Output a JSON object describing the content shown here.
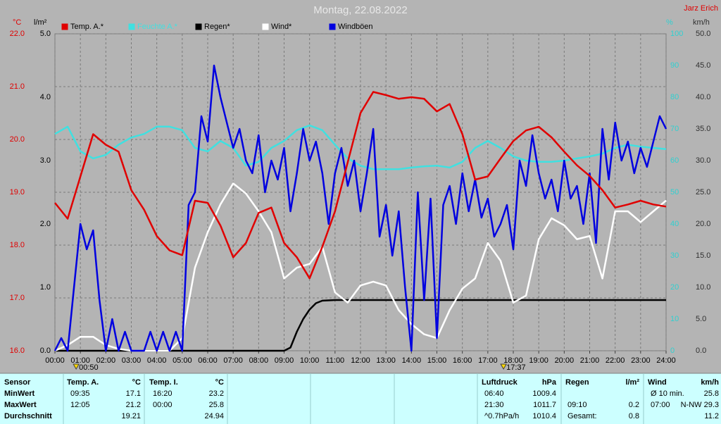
{
  "chart_data": {
    "type": "line",
    "title": "Montag, 22.08.2022",
    "credit": "Jarz Erich",
    "grid": true,
    "xlim": [
      0,
      24
    ],
    "xticks": [
      {
        "value": 0,
        "label": "00:00"
      },
      {
        "value": 1,
        "label": "01:00"
      },
      {
        "value": 2,
        "label": "02:00"
      },
      {
        "value": 3,
        "label": "03:00"
      },
      {
        "value": 4,
        "label": "04:00"
      },
      {
        "value": 5,
        "label": "05:00"
      },
      {
        "value": 6,
        "label": "06:00"
      },
      {
        "value": 7,
        "label": "07:00"
      },
      {
        "value": 8,
        "label": "08:00"
      },
      {
        "value": 9,
        "label": "09:00"
      },
      {
        "value": 10,
        "label": "10:00"
      },
      {
        "value": 11,
        "label": "11:00"
      },
      {
        "value": 12,
        "label": "12:00"
      },
      {
        "value": 13,
        "label": "13:00"
      },
      {
        "value": 14,
        "label": "14:00"
      },
      {
        "value": 15,
        "label": "15:00"
      },
      {
        "value": 16,
        "label": "16:00"
      },
      {
        "value": 17,
        "label": "17:00"
      },
      {
        "value": 18,
        "label": "18:00"
      },
      {
        "value": 19,
        "label": "19:00"
      },
      {
        "value": 20,
        "label": "20:00"
      },
      {
        "value": 21,
        "label": "21:00"
      },
      {
        "value": 22,
        "label": "22:00"
      },
      {
        "value": 23,
        "label": "23:00"
      },
      {
        "value": 24,
        "label": "24:00"
      }
    ],
    "annotations": [
      "00:50",
      "17:37"
    ],
    "axes": [
      {
        "unit": "°C",
        "color": "#e00000",
        "lim": [
          16,
          22
        ],
        "ticks": [
          {
            "value": 16,
            "label": "16.0"
          },
          {
            "value": 17,
            "label": "17.0"
          },
          {
            "value": 18,
            "label": "18.0"
          },
          {
            "value": 19,
            "label": "19.0"
          },
          {
            "value": 20,
            "label": "20.0"
          },
          {
            "value": 21,
            "label": "21.0"
          },
          {
            "value": 22,
            "label": "22.0"
          }
        ]
      },
      {
        "unit": "l/m²",
        "color": "#000000",
        "lim": [
          0,
          5
        ],
        "ticks": [
          {
            "value": 0,
            "label": "0.0"
          },
          {
            "value": 1,
            "label": "1.0"
          },
          {
            "value": 2,
            "label": "2.0"
          },
          {
            "value": 3,
            "label": "3.0"
          },
          {
            "value": 4,
            "label": "4.0"
          },
          {
            "value": 5,
            "label": "5.0"
          }
        ]
      },
      {
        "unit": "%",
        "color": "#30d0d0",
        "lim": [
          0,
          100
        ],
        "ticks": [
          0,
          10,
          20,
          30,
          40,
          50,
          60,
          70,
          80,
          90,
          100
        ]
      },
      {
        "unit": "km/h",
        "color": "#303030",
        "lim": [
          0,
          50
        ],
        "ticks": [
          {
            "value": 0,
            "label": "0.0"
          },
          {
            "value": 5,
            "label": "5.0"
          },
          {
            "value": 10,
            "label": "10.0"
          },
          {
            "value": 15,
            "label": "15.0"
          },
          {
            "value": 20,
            "label": "20.0"
          },
          {
            "value": 25,
            "label": "25.0"
          },
          {
            "value": 30,
            "label": "30.0"
          },
          {
            "value": 35,
            "label": "35.0"
          },
          {
            "value": 40,
            "label": "40.0"
          },
          {
            "value": 45,
            "label": "45.0"
          },
          {
            "value": 50,
            "label": "50.0"
          }
        ]
      }
    ],
    "series": [
      {
        "name": "Temp. A.*",
        "color": "#e00000",
        "axis": 0,
        "x": [
          0,
          0.5,
          1,
          1.5,
          2,
          2.5,
          3,
          3.5,
          4,
          4.5,
          5,
          5.5,
          6,
          6.5,
          7,
          7.5,
          8,
          8.5,
          9,
          9.5,
          10,
          10.5,
          11,
          11.5,
          12,
          12.5,
          13,
          13.5,
          14,
          14.5,
          15,
          15.5,
          16,
          16.5,
          17,
          17.5,
          18,
          18.5,
          19,
          19.5,
          20,
          20.5,
          21,
          21.5,
          22,
          22.5,
          23,
          23.5,
          24
        ],
        "values": [
          18.8,
          18.5,
          19.3,
          20.1,
          19.9,
          19.77,
          19.04,
          18.67,
          18.17,
          17.9,
          17.81,
          18.84,
          18.8,
          18.37,
          17.77,
          18.04,
          18.61,
          18.71,
          18.04,
          17.77,
          17.37,
          17.97,
          18.64,
          19.57,
          20.5,
          20.9,
          20.84,
          20.77,
          20.8,
          20.77,
          20.53,
          20.67,
          20.1,
          19.24,
          19.3,
          19.64,
          19.97,
          20.17,
          20.24,
          20.04,
          19.77,
          19.51,
          19.31,
          19.04,
          18.71,
          18.77,
          18.84,
          18.77,
          18.73
        ]
      },
      {
        "name": "Feuchte A.*",
        "color": "#40e0e0",
        "axis": 2,
        "x": [
          0,
          0.5,
          1,
          1.5,
          2,
          2.5,
          3,
          3.5,
          4,
          4.5,
          5,
          5.5,
          6,
          6.5,
          7,
          7.5,
          8,
          8.5,
          9,
          9.5,
          10,
          10.5,
          11,
          11.5,
          12,
          12.5,
          13,
          13.5,
          14,
          14.5,
          15,
          15.5,
          16,
          16.5,
          17,
          17.5,
          18,
          18.5,
          19,
          19.5,
          20,
          20.5,
          21,
          21.5,
          22,
          22.5,
          23,
          23.5,
          24
        ],
        "values": [
          68.4,
          70.7,
          62.9,
          60.7,
          61.8,
          65,
          67.3,
          68.4,
          70.7,
          70.7,
          69.6,
          64,
          62.9,
          66.2,
          64,
          58.4,
          59.6,
          64,
          66.2,
          69.6,
          71.1,
          69.6,
          65,
          60.7,
          58.4,
          57.3,
          57.3,
          57.3,
          57.8,
          58.2,
          58.4,
          57.8,
          59.6,
          64,
          66.2,
          64,
          61.3,
          60,
          59.6,
          59.6,
          60,
          60.7,
          61.3,
          62.2,
          64,
          65,
          64.4,
          64,
          63.6
        ]
      },
      {
        "name": "Regen*",
        "color": "#000000",
        "axis": 1,
        "x": [
          0,
          9,
          9.25,
          9.5,
          9.75,
          10,
          10.25,
          10.5,
          11,
          24
        ],
        "values": [
          0,
          0,
          0.05,
          0.3,
          0.5,
          0.65,
          0.75,
          0.79,
          0.8,
          0.8
        ]
      },
      {
        "name": "Wind*",
        "color": "#ffffff",
        "axis": 3,
        "x": [
          0,
          0.5,
          1,
          1.5,
          2,
          2.5,
          3,
          3.5,
          4,
          4.5,
          5,
          5.5,
          6,
          6.5,
          7,
          7.5,
          8,
          8.5,
          9,
          9.5,
          10,
          10.5,
          11,
          11.5,
          12,
          12.5,
          13,
          13.5,
          14,
          14.5,
          15,
          15.5,
          16,
          16.5,
          17,
          17.5,
          18,
          18.5,
          19,
          19.5,
          20,
          20.5,
          21,
          21.5,
          22,
          22.5,
          23,
          23.5,
          24
        ],
        "values": [
          0,
          0.9,
          2.2,
          2.2,
          0.9,
          0.3,
          0,
          0,
          0,
          0,
          2,
          13.1,
          18.7,
          23.1,
          26.4,
          24.8,
          22,
          18.7,
          11.4,
          13.1,
          13.7,
          16.4,
          9.2,
          7.6,
          10.3,
          10.9,
          10.3,
          6.4,
          4.2,
          2.6,
          2,
          6.4,
          9.8,
          11.4,
          17,
          14.2,
          7.6,
          8.7,
          17.6,
          20.9,
          19.8,
          17.6,
          18.1,
          11.4,
          22,
          22,
          20.3,
          22,
          23.7
        ]
      },
      {
        "name": "Windböen",
        "color": "#0000e0",
        "axis": 3,
        "x": [
          0,
          0.25,
          0.5,
          0.75,
          1,
          1.25,
          1.5,
          1.75,
          2,
          2.25,
          2.5,
          2.75,
          3,
          3.25,
          3.5,
          3.75,
          4,
          4.25,
          4.5,
          4.75,
          5,
          5.25,
          5.5,
          5.75,
          6,
          6.25,
          6.5,
          6.75,
          7,
          7.25,
          7.5,
          7.75,
          8,
          8.25,
          8.5,
          8.75,
          9,
          9.25,
          9.5,
          9.75,
          10,
          10.25,
          10.5,
          10.75,
          11,
          11.25,
          11.5,
          11.75,
          12,
          12.25,
          12.5,
          12.75,
          13,
          13.25,
          13.5,
          13.75,
          14,
          14.25,
          14.5,
          14.75,
          15,
          15.25,
          15.5,
          15.75,
          16,
          16.25,
          16.5,
          16.75,
          17,
          17.25,
          17.5,
          17.75,
          18,
          18.25,
          18.5,
          18.75,
          19,
          19.25,
          19.5,
          19.75,
          20,
          20.25,
          20.5,
          20.75,
          21,
          21.25,
          21.5,
          21.75,
          22,
          22.25,
          22.5,
          22.75,
          23,
          23.25,
          23.5,
          23.75,
          24
        ],
        "values": [
          0,
          2,
          0,
          10,
          20,
          16,
          19,
          8,
          0,
          5,
          0,
          3,
          0,
          0,
          0,
          3,
          0,
          3,
          0,
          3,
          0,
          23,
          25,
          37,
          33,
          45,
          40,
          36,
          32,
          35,
          30,
          28,
          34,
          25,
          30,
          27,
          32,
          22,
          28,
          35,
          30,
          33,
          28,
          20,
          28,
          32,
          26,
          30,
          22,
          28,
          35,
          18,
          23,
          15,
          22,
          10,
          0,
          25,
          8,
          24,
          2,
          23,
          26,
          20,
          28,
          22,
          27,
          21,
          24,
          18,
          20,
          23,
          16,
          30,
          26,
          34,
          28,
          24,
          27,
          22,
          30,
          24,
          26,
          20,
          28,
          17,
          35,
          27,
          36,
          30,
          33,
          28,
          32,
          29,
          33,
          37,
          35
        ]
      }
    ]
  },
  "table": {
    "row_labels": [
      "Sensor",
      "MinWert",
      "MaxWert",
      "Durchschnitt"
    ],
    "columns": [
      {
        "header": "Temp. A.",
        "unit": "°C",
        "min": {
          "time": "09:35",
          "value": "17.1"
        },
        "max": {
          "time": "12:05",
          "value": "21.2"
        },
        "avg": {
          "value": "19.21"
        }
      },
      {
        "header": "Temp. I.",
        "unit": "°C",
        "min": {
          "time": "16:20",
          "value": "23.2"
        },
        "max": {
          "time": "00:00",
          "value": "25.8"
        },
        "avg": {
          "value": "24.94"
        }
      },
      {
        "header": "Luftdruck",
        "unit": "hPa",
        "min": {
          "time": "06:40",
          "value": "1009.4"
        },
        "max": {
          "time": "21:30",
          "value": "1011.7"
        },
        "avg": {
          "time": "^0.7hPa/h",
          "value": "1010.4"
        }
      },
      {
        "header": "Regen",
        "unit": "l/m²",
        "max": {
          "time": "09:10",
          "value": "0.2"
        },
        "avg": {
          "time": "Gesamt:",
          "value": "0.8"
        }
      },
      {
        "header": "Wind",
        "unit": "km/h",
        "min": {
          "time": "Ø 10 min.",
          "value": "25.8"
        },
        "max": {
          "time": "07:00",
          "value": "N-NW 29.3"
        },
        "avg": {
          "value": "11.2"
        }
      }
    ]
  }
}
